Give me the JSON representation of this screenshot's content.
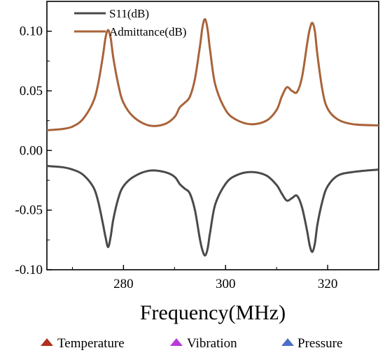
{
  "chart_data": {
    "type": "line",
    "xlabel": "Frequency(MHz)",
    "ylabel": "",
    "xlim": [
      265,
      330
    ],
    "ylim": [
      -0.1,
      0.125
    ],
    "xticks": [
      280,
      300,
      320
    ],
    "xtick_labels": [
      "280",
      "300",
      "320"
    ],
    "yticks": [
      0.1,
      0.05,
      0.0,
      -0.05,
      -0.1
    ],
    "ytick_labels": [
      "0.10",
      "0.05",
      "0.00",
      "-0.05",
      "-0.10"
    ],
    "legend_position": "top-left",
    "series": [
      {
        "name": "S11(dB)",
        "color": "#4a4a4a",
        "x": [
          265,
          268,
          270,
          272,
          274,
          275,
          276,
          276.5,
          277,
          277.5,
          278,
          279,
          280,
          282,
          285,
          288,
          290,
          291,
          292,
          293,
          294,
          295,
          295.5,
          296,
          296.5,
          297,
          298,
          300,
          302,
          305,
          308,
          310,
          311,
          312,
          313,
          314,
          315,
          316,
          316.5,
          317,
          317.5,
          318,
          319,
          320,
          322,
          325,
          330
        ],
        "values": [
          -0.013,
          -0.014,
          -0.016,
          -0.02,
          -0.03,
          -0.042,
          -0.062,
          -0.073,
          -0.081,
          -0.072,
          -0.058,
          -0.04,
          -0.03,
          -0.022,
          -0.017,
          -0.018,
          -0.022,
          -0.028,
          -0.032,
          -0.036,
          -0.05,
          -0.075,
          -0.084,
          -0.088,
          -0.082,
          -0.068,
          -0.045,
          -0.028,
          -0.021,
          -0.018,
          -0.021,
          -0.029,
          -0.036,
          -0.042,
          -0.04,
          -0.038,
          -0.048,
          -0.068,
          -0.08,
          -0.085,
          -0.078,
          -0.062,
          -0.042,
          -0.03,
          -0.021,
          -0.018,
          -0.016
        ]
      },
      {
        "name": "Admittance(dB)",
        "color": "#a9633a",
        "x": [
          265,
          268,
          270,
          272,
          274,
          275,
          276,
          276.5,
          277,
          277.5,
          278,
          279,
          280,
          282,
          285,
          288,
          290,
          291,
          292,
          293,
          294,
          295,
          295.5,
          296,
          296.5,
          297,
          298,
          300,
          302,
          305,
          308,
          310,
          311,
          312,
          313,
          314,
          315,
          316,
          316.5,
          317,
          317.5,
          318,
          319,
          320,
          322,
          325,
          330
        ],
        "values": [
          0.017,
          0.018,
          0.02,
          0.026,
          0.04,
          0.055,
          0.08,
          0.095,
          0.101,
          0.094,
          0.078,
          0.055,
          0.04,
          0.028,
          0.021,
          0.022,
          0.028,
          0.036,
          0.04,
          0.045,
          0.06,
          0.088,
          0.104,
          0.11,
          0.101,
          0.083,
          0.055,
          0.034,
          0.026,
          0.022,
          0.025,
          0.034,
          0.045,
          0.053,
          0.05,
          0.049,
          0.062,
          0.09,
          0.102,
          0.107,
          0.1,
          0.08,
          0.05,
          0.035,
          0.026,
          0.022,
          0.021
        ]
      }
    ]
  },
  "bottom_legend": [
    {
      "label": "Temperature",
      "color": "#b0301e"
    },
    {
      "label": "Vibration",
      "color": "#b93ad8"
    },
    {
      "label": "Pressure",
      "color": "#4b6fc4"
    }
  ]
}
